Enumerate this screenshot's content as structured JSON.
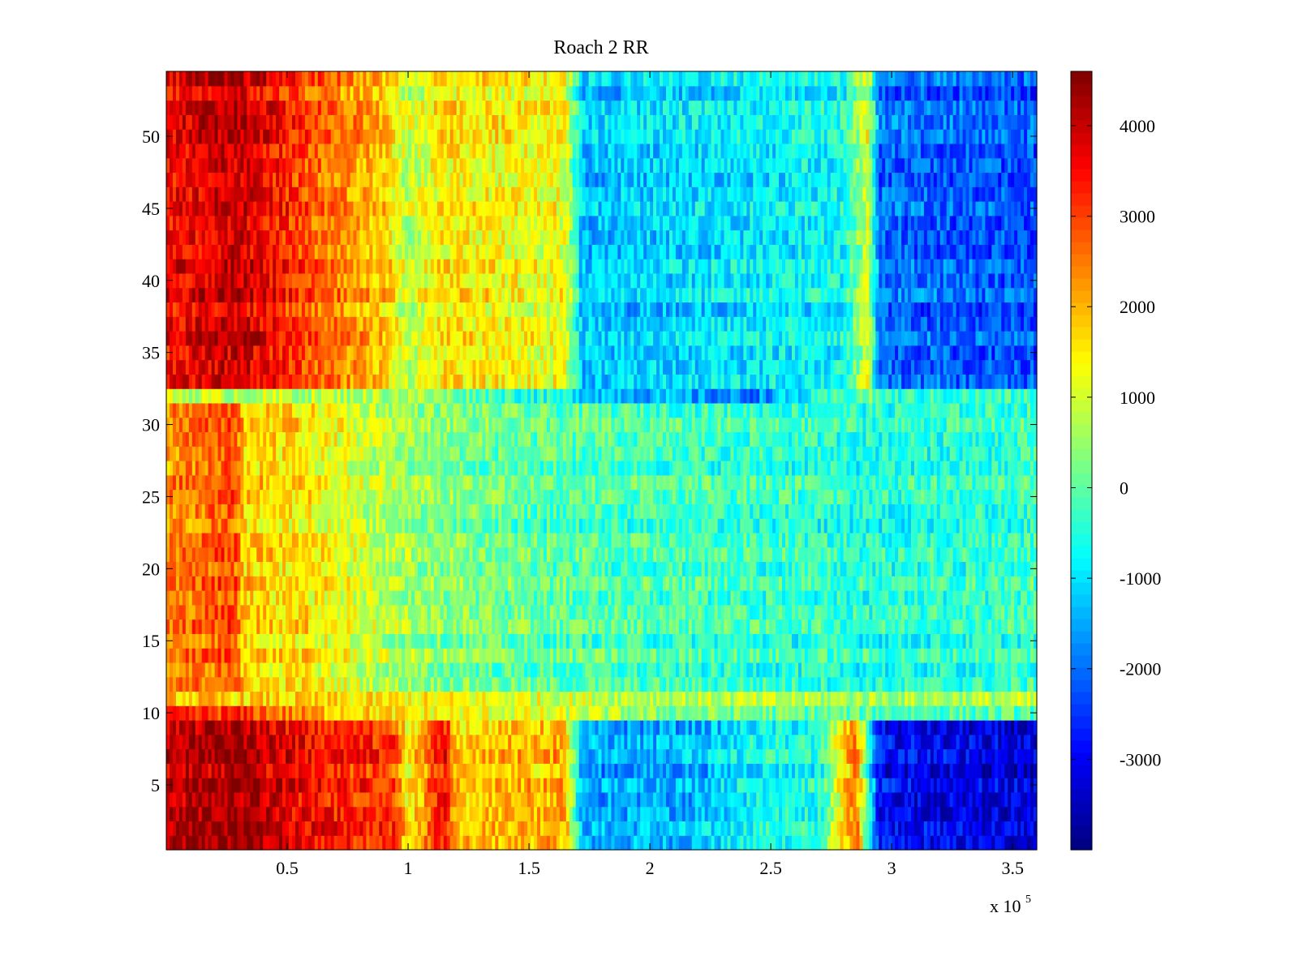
{
  "chart_data": {
    "type": "heatmap",
    "title": "Roach 2 RR",
    "xlabel": "",
    "ylabel": "",
    "x_multiplier_label": {
      "base": "x 10",
      "exponent": "5"
    },
    "xlim": [
      0,
      360000
    ],
    "ylim": [
      0.5,
      54.5
    ],
    "x_ticks": [
      50000,
      100000,
      150000,
      200000,
      250000,
      300000,
      350000
    ],
    "x_tick_labels": [
      "0.5",
      "1",
      "1.5",
      "2",
      "2.5",
      "3",
      "3.5"
    ],
    "y_ticks": [
      5,
      10,
      15,
      20,
      25,
      30,
      35,
      40,
      45,
      50
    ],
    "y_tick_labels": [
      "5",
      "10",
      "15",
      "20",
      "25",
      "30",
      "35",
      "40",
      "45",
      "50"
    ],
    "colormap": "jet",
    "clim": [
      -4000,
      4600
    ],
    "colorbar_ticks": [
      4000,
      3000,
      2000,
      1000,
      0,
      -1000,
      -2000,
      -3000
    ],
    "colorbar_tick_labels": [
      "4000",
      "3000",
      "2000",
      "1000",
      "0",
      "-1000",
      "-2000",
      "-3000"
    ],
    "rows": 54,
    "row_groups": [
      {
        "rows": [
          1,
          9
        ],
        "profile": [
          [
            0,
            4000
          ],
          [
            30000,
            4300
          ],
          [
            60000,
            3400
          ],
          [
            95000,
            3000
          ],
          [
            100000,
            1200
          ],
          [
            115000,
            3500
          ],
          [
            120000,
            1800
          ],
          [
            165000,
            2000
          ],
          [
            172000,
            -1600
          ],
          [
            220000,
            -1400
          ],
          [
            245000,
            -700
          ],
          [
            270000,
            -600
          ],
          [
            285000,
            2600
          ],
          [
            295000,
            -3000
          ],
          [
            360000,
            -3300
          ]
        ]
      },
      {
        "rows": [
          10,
          10
        ],
        "profile": [
          [
            0,
            3000
          ],
          [
            30000,
            3200
          ],
          [
            60000,
            2200
          ],
          [
            100000,
            1500
          ],
          [
            170000,
            1000
          ],
          [
            200000,
            400
          ],
          [
            300000,
            0
          ],
          [
            360000,
            0
          ]
        ]
      },
      {
        "rows": [
          11,
          11
        ],
        "profile": [
          [
            0,
            1600
          ],
          [
            100000,
            1200
          ],
          [
            200000,
            600
          ],
          [
            300000,
            400
          ],
          [
            360000,
            500
          ]
        ]
      },
      {
        "rows": [
          12,
          31
        ],
        "profile": [
          [
            0,
            2300
          ],
          [
            28000,
            2900
          ],
          [
            32000,
            1800
          ],
          [
            60000,
            1500
          ],
          [
            100000,
            500
          ],
          [
            150000,
            0
          ],
          [
            200000,
            -200
          ],
          [
            300000,
            -500
          ],
          [
            360000,
            -300
          ]
        ]
      },
      {
        "rows": [
          32,
          32
        ],
        "profile": [
          [
            0,
            1000
          ],
          [
            100000,
            800
          ],
          [
            180000,
            -1000
          ],
          [
            240000,
            -1800
          ],
          [
            290000,
            300
          ],
          [
            300000,
            -300
          ],
          [
            360000,
            -200
          ]
        ]
      },
      {
        "rows": [
          33,
          54
        ],
        "profile": [
          [
            0,
            3500
          ],
          [
            30000,
            4000
          ],
          [
            60000,
            2800
          ],
          [
            90000,
            1800
          ],
          [
            100000,
            800
          ],
          [
            115000,
            1500
          ],
          [
            165000,
            1200
          ],
          [
            172000,
            -1300
          ],
          [
            280000,
            -700
          ],
          [
            290000,
            1000
          ],
          [
            295000,
            -2000
          ],
          [
            360000,
            -2300
          ]
        ]
      }
    ]
  }
}
